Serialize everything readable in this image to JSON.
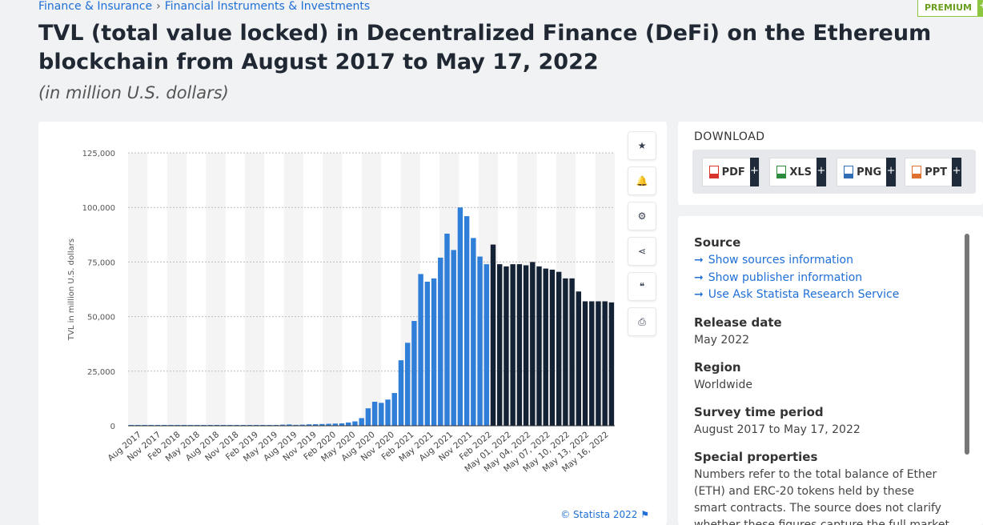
{
  "breadcrumb": [
    "Finance & Insurance",
    "Financial Instruments & Investments"
  ],
  "premium": {
    "label": "PREMIUM",
    "plus": "+"
  },
  "title": "TVL (total value locked) in Decentralized Finance (DeFi) on the Ethereum blockchain from August 2017 to May 17, 2022",
  "subtitle": "(in million U.S. dollars)",
  "toolbar": [
    {
      "name": "star-icon",
      "glyph": "★"
    },
    {
      "name": "bell-icon",
      "glyph": "🔔"
    },
    {
      "name": "gear-icon",
      "glyph": "⚙"
    },
    {
      "name": "share-icon",
      "glyph": "⋖"
    },
    {
      "name": "quote-icon",
      "glyph": "❝"
    },
    {
      "name": "print-icon",
      "glyph": "⎙"
    }
  ],
  "credit": "© Statista 2022",
  "chart_data": {
    "type": "bar",
    "ylabel": "TVL in million U.S. dollars",
    "ylim": [
      0,
      125000
    ],
    "yticks": [
      "0",
      "25,000",
      "50,000",
      "75,000",
      "100,000",
      "125,000"
    ],
    "xticks": [
      "Aug 2017",
      "Nov 2017",
      "Feb 2018",
      "May 2018",
      "Aug 2018",
      "Nov 2018",
      "Feb 2019",
      "May 2019",
      "Aug 2019",
      "Nov 2019",
      "Feb 2020",
      "May 2020",
      "Aug 2020",
      "Nov 2020",
      "Feb 2021",
      "May 2021",
      "Aug 2021",
      "Nov 2021",
      "Feb 2022",
      "May 01, 2022",
      "May 04, 2022",
      "May 07, 2022",
      "May 10, 2022",
      "May 13, 2022",
      "May 16, 2022"
    ],
    "colors": {
      "monthly": "#2f7ed8",
      "daily": "#142236"
    },
    "values": [
      10,
      20,
      40,
      60,
      80,
      100,
      150,
      200,
      250,
      300,
      300,
      300,
      280,
      250,
      230,
      210,
      200,
      190,
      180,
      200,
      220,
      250,
      300,
      500,
      600,
      400,
      500,
      650,
      700,
      800,
      900,
      1000,
      1100,
      1500,
      2000,
      3500,
      8000,
      11000,
      10500,
      12000,
      15000,
      30000,
      38000,
      48000,
      69500,
      66000,
      67500,
      77000,
      88000,
      80500,
      100000,
      96000,
      86000,
      77500,
      74000,
      83000,
      74000,
      73000,
      74000,
      74000,
      73500,
      75000,
      73000,
      72000,
      71500,
      70500,
      67500,
      67500,
      61500,
      57000,
      57000,
      57000,
      57000,
      56500
    ],
    "daily_start_index": 55
  },
  "download": {
    "title": "DOWNLOAD",
    "buttons": [
      {
        "label": "PDF",
        "color": "#d9342b"
      },
      {
        "label": "XLS",
        "color": "#2e8b3e"
      },
      {
        "label": "PNG",
        "color": "#2f6db5"
      },
      {
        "label": "PPT",
        "color": "#e07030"
      }
    ],
    "plus": "+"
  },
  "info": {
    "source_h": "Source",
    "source_links": [
      "Show sources information",
      "Show publisher information",
      "Use Ask Statista Research Service"
    ],
    "release_h": "Release date",
    "release": "May 2022",
    "region_h": "Region",
    "region": "Worldwide",
    "survey_h": "Survey time period",
    "survey": "August 2017 to May 17, 2022",
    "special_h": "Special properties",
    "special": "Numbers refer to the total balance of Ether (ETH) and ERC-20 tokens held by these smart contracts. The source does not clarify whether these figures capture the full market or not. The numbers"
  }
}
